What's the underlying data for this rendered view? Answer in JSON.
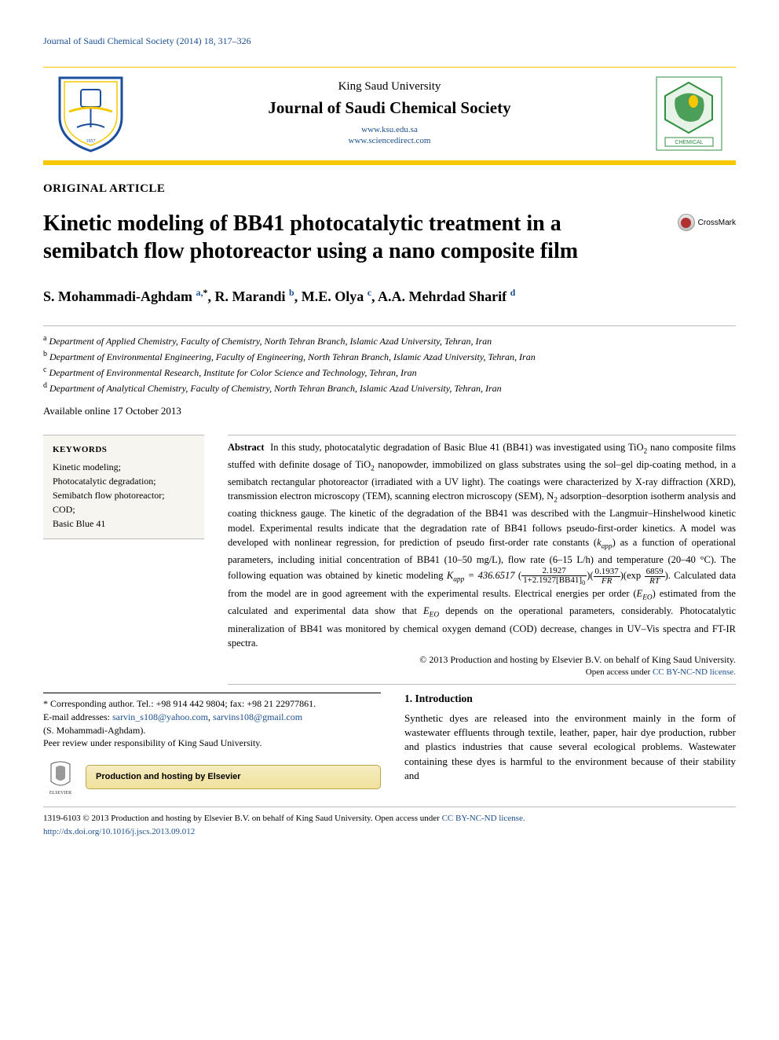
{
  "running_header": {
    "left": "Journal of Saudi Chemical Society (2014) 18, 317–326",
    "right": ""
  },
  "masthead": {
    "university": "King Saud University",
    "journal": "Journal of Saudi Chemical Society",
    "url1": "www.ksu.edu.sa",
    "url2": "www.sciencedirect.com"
  },
  "article_type": "ORIGINAL ARTICLE",
  "title": "Kinetic modeling of BB41 photocatalytic treatment in a semibatch flow photoreactor using a nano composite film",
  "crossmark_label": "CrossMark",
  "authors_html": "S. Mohammadi-Aghdam <a href=\"#\"><sup>a,</sup></a><sup>*</sup>, R. Marandi <a href=\"#\"><sup>b</sup></a>, M.E. Olya <a href=\"#\"><sup>c</sup></a>, A.A. Mehrdad Sharif <a href=\"#\"><sup>d</sup></a>",
  "affiliations": [
    {
      "sup": "a",
      "text": "Department of Applied Chemistry, Faculty of Chemistry, North Tehran Branch, Islamic Azad University, Tehran, Iran"
    },
    {
      "sup": "b",
      "text": "Department of Environmental Engineering, Faculty of Engineering, North Tehran Branch, Islamic Azad University, Tehran, Iran"
    },
    {
      "sup": "c",
      "text": "Department of Environmental Research, Institute for Color Science and Technology, Tehran, Iran"
    },
    {
      "sup": "d",
      "text": "Department of Analytical Chemistry, Faculty of Chemistry, North Tehran Branch, Islamic Azad University, Tehran, Iran"
    }
  ],
  "available": "Available online 17 October 2013",
  "keywords": {
    "head": "KEYWORDS",
    "items": [
      "Kinetic modeling;",
      "Photocatalytic degradation;",
      "Semibatch flow photoreactor;",
      "COD;",
      "Basic Blue 41"
    ]
  },
  "abstract": {
    "head": "Abstract",
    "body_pre_eq": "In this study, photocatalytic degradation of Basic Blue 41 (BB41) was investigated using TiO<sub>2</sub> nano composite films stuffed with definite dosage of TiO<sub>2</sub> nanopowder, immobilized on glass substrates using the sol–gel dip-coating method, in a semibatch rectangular photoreactor (irradiated with a UV light). The coatings were characterized by X-ray diffraction (XRD), transmission electron microscopy (TEM), scanning electron microscopy (SEM), N<sub>2</sub> adsorption–desorption isotherm analysis and coating thickness gauge. The kinetic of the degradation of the BB41 was described with the Langmuir–Hinshelwood kinetic model. Experimental results indicate that the degradation rate of BB41 follows pseudo-first-order kinetics. A model was developed with nonlinear regression, for prediction of pseudo first-order rate constants (<i>k<sub>app</sub></i>) as a function of operational parameters, including initial concentration of BB41 (10–50 mg/L), flow rate (6–15 L/h) and temperature (20–40 °C). The following equation was obtained by kinetic modeling ",
    "equation": {
      "lead": "K<sub>app</sub> = 436.6517",
      "frac1_num": "2.1927",
      "frac1_den": "1+2.1927[BB41]<sub>0</sub>",
      "frac2_num": "0.1937",
      "frac2_den": "FR",
      "exp_num": "6859",
      "exp_den": "RT"
    },
    "body_post_eq": ". Calculated data from the model are in good agreement with the experimental results. Electrical energies per order (<i>E<sub>EO</sub></i>) estimated from the calculated and experimental data show that <i>E<sub>EO</sub></i> depends on the operational parameters, considerably. Photocatalytic mineralization of BB41 was monitored by chemical oxygen demand (COD) decrease, changes in UV–Vis spectra and FT-IR spectra.",
    "copyright": "© 2013 Production and hosting by Elsevier B.V. on behalf of King Saud University.",
    "license_text": "Open access under ",
    "license_link": "CC BY-NC-ND license."
  },
  "corresponding": {
    "line1": "* Corresponding author. Tel.: +98 914 442 9804; fax: +98 21 22977861.",
    "email_label": "E-mail addresses: ",
    "email1": "sarvin_s108@yahoo.com",
    "sep": ", ",
    "email2": "sarvins108@gmail.com",
    "author_in_parens": "(S. Mohammadi-Aghdam).",
    "peer_review": "Peer review under responsibility of King Saud University.",
    "hosting_label": "Production and hosting by Elsevier"
  },
  "intro": {
    "heading": "1. Introduction",
    "para": "Synthetic dyes are released into the environment mainly in the form of wastewater effluents through textile, leather, paper, hair dye production, rubber and plastics industries that cause several ecological problems. Wastewater containing these dyes is harmful to the environment because of their stability and"
  },
  "footer": {
    "issn": "1319-6103 © 2013 Production and hosting by Elsevier B.V. on behalf of King Saud University. ",
    "open_access": "Open access under ",
    "license_link": "CC BY-NC-ND license.",
    "doi": "http://dx.doi.org/10.1016/j.jscs.2013.09.012"
  },
  "colors": {
    "accent_yellow": "#f7c800",
    "link_blue": "#1a4f8f",
    "rule_gray": "#bbbbbb",
    "keywords_bg": "#f7f5f0"
  }
}
